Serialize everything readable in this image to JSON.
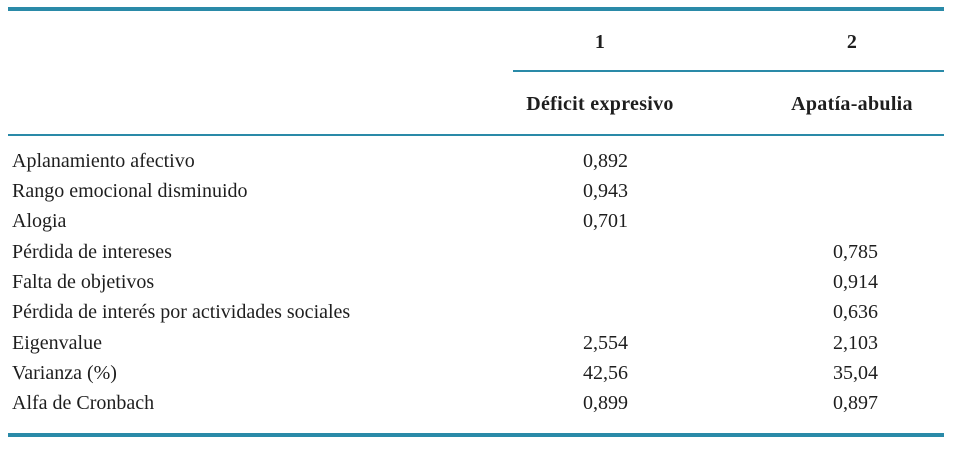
{
  "table": {
    "columns": [
      {
        "number": "1",
        "label": "Déficit expresivo"
      },
      {
        "number": "2",
        "label": "Apatía-abulia"
      }
    ],
    "rows": [
      {
        "label": "Aplanamiento afectivo",
        "v1": "0,892",
        "v2": ""
      },
      {
        "label": "Rango emocional disminuido",
        "v1": "0,943",
        "v2": ""
      },
      {
        "label": "Alogia",
        "v1": "0,701",
        "v2": ""
      },
      {
        "label": "Pérdida de intereses",
        "v1": "",
        "v2": "0,785"
      },
      {
        "label": "Falta de objetivos",
        "v1": "",
        "v2": "0,914"
      },
      {
        "label": "Pérdida de interés por actividades sociales",
        "v1": "",
        "v2": "0,636"
      },
      {
        "label": "Eigenvalue",
        "v1": "2,554",
        "v2": "2,103"
      },
      {
        "label": "Varianza (%)",
        "v1": "42,56",
        "v2": "35,04"
      },
      {
        "label": "Alfa de Cronbach",
        "v1": "0,899",
        "v2": "0,897"
      }
    ],
    "rule_color": "#2a8aa8"
  }
}
